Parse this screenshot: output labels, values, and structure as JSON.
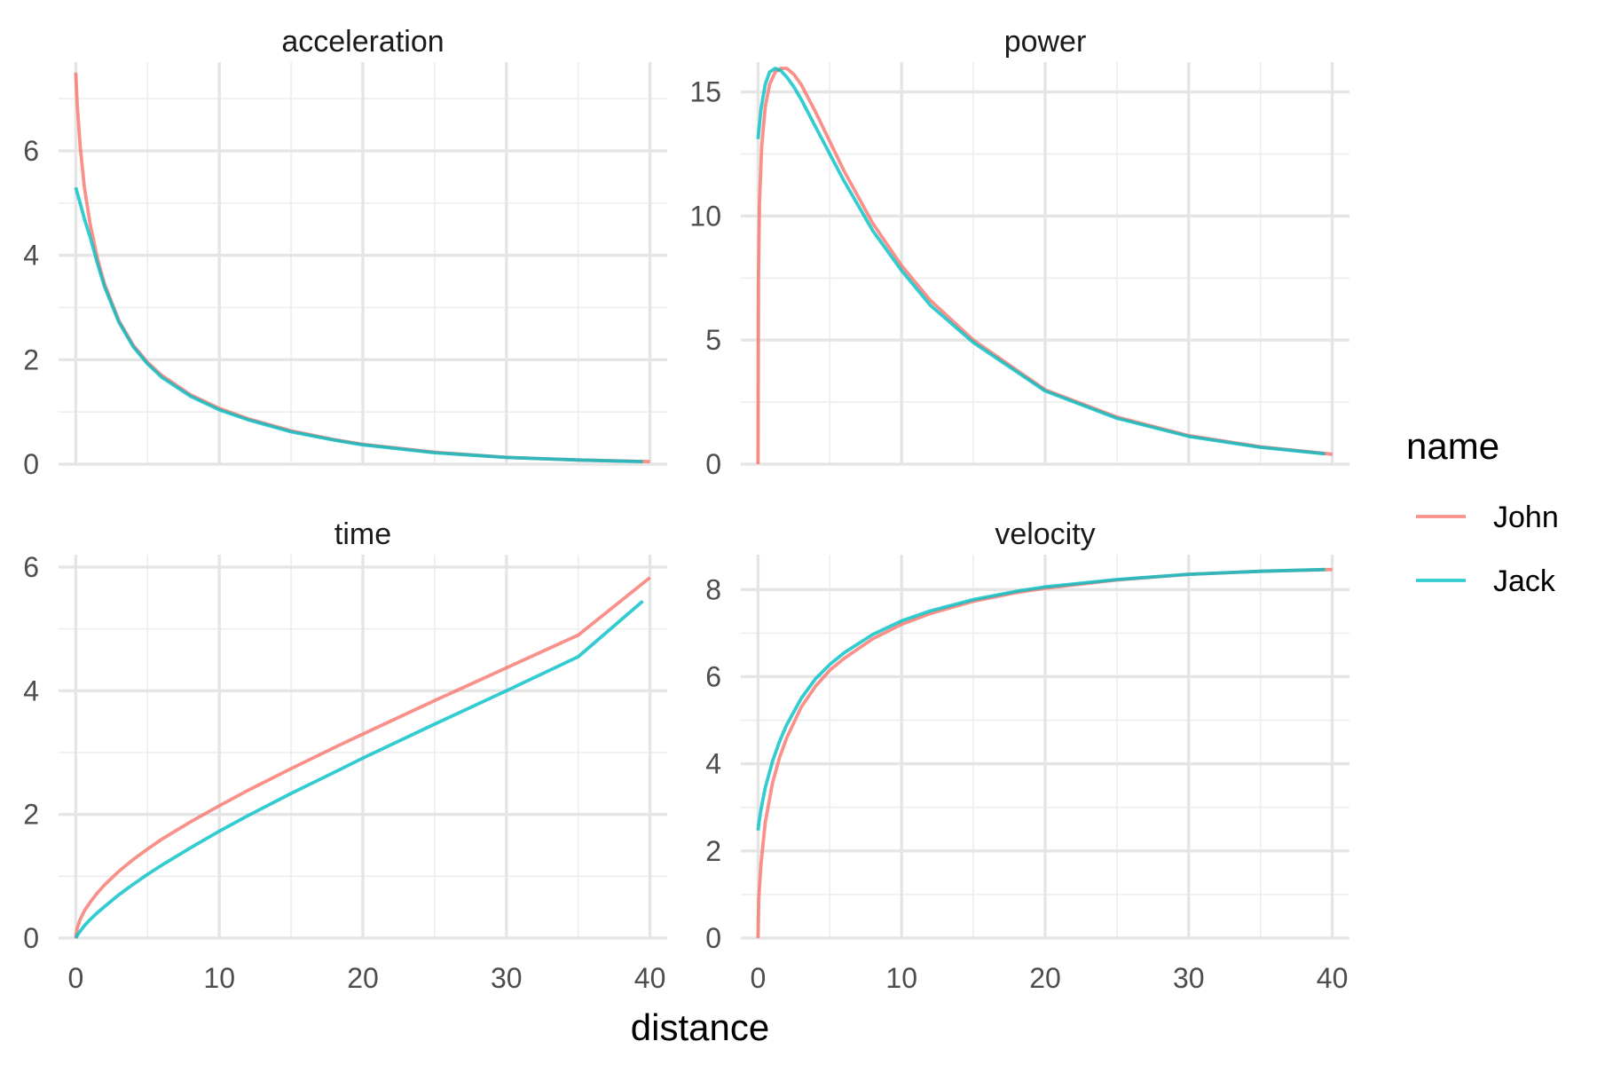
{
  "chart_data": {
    "type": "line",
    "facet_layout": "2x2",
    "xlabel": "distance",
    "legend": {
      "title": "name",
      "position": "right",
      "entries": [
        {
          "label": "John",
          "color": "#F8766D"
        },
        {
          "label": "Jack",
          "color": "#00BFC4"
        }
      ]
    },
    "x_ticks": [
      "0",
      "10",
      "20",
      "30",
      "40"
    ],
    "xlim": [
      0,
      40
    ],
    "grid": true,
    "series_colors": {
      "John": "#F8766D",
      "Jack": "#00BFC4"
    },
    "panels": [
      {
        "title": "acceleration",
        "ylim": [
          0,
          7.7
        ],
        "y_ticks": [
          0,
          2,
          4,
          6
        ],
        "y_tick_labels": [
          "0",
          "2",
          "4",
          "6"
        ],
        "series": [
          {
            "name": "John",
            "x": [
              0,
              0.1,
              0.3,
              0.6,
              1,
              1.5,
              2,
              3,
              4,
              5,
              6,
              8,
              10,
              12,
              15,
              18,
              20,
              25,
              30,
              35,
              40
            ],
            "y": [
              7.5,
              6.9,
              6.1,
              5.3,
              4.6,
              3.95,
              3.45,
              2.75,
              2.28,
              1.95,
              1.7,
              1.33,
              1.07,
              0.87,
              0.64,
              0.47,
              0.38,
              0.23,
              0.13,
              0.08,
              0.05
            ]
          },
          {
            "name": "Jack",
            "x": [
              0,
              0.1,
              0.3,
              0.6,
              1,
              1.5,
              2,
              3,
              4,
              5,
              6,
              8,
              10,
              12,
              15,
              18,
              20,
              25,
              30,
              35,
              39.5
            ],
            "y": [
              5.3,
              5.2,
              5.0,
              4.7,
              4.35,
              3.85,
              3.4,
              2.72,
              2.25,
              1.92,
              1.66,
              1.3,
              1.04,
              0.85,
              0.62,
              0.46,
              0.37,
              0.22,
              0.13,
              0.08,
              0.05
            ]
          }
        ]
      },
      {
        "title": "power",
        "ylim": [
          0,
          16.2
        ],
        "y_ticks": [
          0,
          5,
          10,
          15
        ],
        "y_tick_labels": [
          "0",
          "5",
          "10",
          "15"
        ],
        "series": [
          {
            "name": "John",
            "x": [
              0,
              0.03,
              0.1,
              0.25,
              0.5,
              0.8,
              1.2,
              1.6,
              2,
              2.5,
              3,
              4,
              5,
              6,
              8,
              10,
              12,
              15,
              20,
              25,
              30,
              35,
              40
            ],
            "y": [
              0,
              7.5,
              10.5,
              12.8,
              14.4,
              15.3,
              15.8,
              15.95,
              15.95,
              15.7,
              15.3,
              14.2,
              13.0,
              11.8,
              9.7,
              8.0,
              6.6,
              5.0,
              3.0,
              1.9,
              1.15,
              0.7,
              0.4
            ]
          },
          {
            "name": "Jack",
            "x": [
              0,
              0.2,
              0.5,
              0.8,
              1.2,
              1.6,
              2,
              2.5,
              3,
              4,
              5,
              6,
              8,
              10,
              12,
              15,
              20,
              25,
              30,
              35,
              39.5
            ],
            "y": [
              13.1,
              14.3,
              15.3,
              15.8,
              15.95,
              15.85,
              15.6,
              15.2,
              14.7,
              13.6,
              12.5,
              11.4,
              9.4,
              7.8,
              6.4,
              4.9,
              2.95,
              1.85,
              1.12,
              0.68,
              0.42
            ]
          }
        ]
      },
      {
        "title": "time",
        "ylim": [
          0,
          6.2
        ],
        "y_ticks": [
          0,
          2,
          4,
          6
        ],
        "y_tick_labels": [
          "0",
          "2",
          "4",
          "6"
        ],
        "series": [
          {
            "name": "John",
            "x": [
              0,
              0.1,
              0.3,
              0.6,
              1,
              1.5,
              2,
              3,
              4,
              5,
              6,
              8,
              10,
              12,
              15,
              18,
              20,
              25,
              30,
              35,
              40
            ],
            "y": [
              0,
              0.16,
              0.3,
              0.44,
              0.58,
              0.73,
              0.86,
              1.08,
              1.27,
              1.44,
              1.6,
              1.88,
              2.14,
              2.39,
              2.74,
              3.08,
              3.3,
              3.84,
              4.37,
              4.9,
              5.83
            ]
          },
          {
            "name": "Jack",
            "x": [
              0,
              0.1,
              0.3,
              0.6,
              1,
              1.5,
              2,
              3,
              4,
              5,
              6,
              8,
              10,
              12,
              15,
              18,
              20,
              25,
              30,
              35,
              39.5
            ],
            "y": [
              0,
              0.04,
              0.11,
              0.2,
              0.3,
              0.41,
              0.51,
              0.7,
              0.87,
              1.03,
              1.18,
              1.46,
              1.73,
              1.98,
              2.34,
              2.68,
              2.91,
              3.46,
              4.0,
              4.55,
              5.45
            ]
          }
        ]
      },
      {
        "title": "velocity",
        "ylim": [
          0,
          8.8
        ],
        "y_ticks": [
          0,
          2,
          4,
          6,
          8
        ],
        "y_tick_labels": [
          "0",
          "2",
          "4",
          "6",
          "8"
        ],
        "series": [
          {
            "name": "John",
            "x": [
              0,
              0.05,
              0.2,
              0.5,
              1,
              1.5,
              2,
              3,
              4,
              5,
              6,
              8,
              10,
              12,
              15,
              18,
              20,
              25,
              30,
              35,
              40
            ],
            "y": [
              0,
              0.9,
              1.7,
              2.65,
              3.55,
              4.15,
              4.6,
              5.3,
              5.78,
              6.15,
              6.42,
              6.87,
              7.2,
              7.45,
              7.73,
              7.93,
              8.03,
              8.22,
              8.35,
              8.42,
              8.46
            ]
          },
          {
            "name": "Jack",
            "x": [
              0,
              0.05,
              0.2,
              0.5,
              1,
              1.5,
              2,
              3,
              4,
              5,
              6,
              8,
              10,
              12,
              15,
              18,
              20,
              25,
              30,
              35,
              39.5
            ],
            "y": [
              2.47,
              2.62,
              2.95,
              3.45,
              4.05,
              4.52,
              4.9,
              5.5,
              5.95,
              6.28,
              6.55,
              6.97,
              7.28,
              7.51,
              7.77,
              7.96,
              8.06,
              8.23,
              8.35,
              8.42,
              8.46
            ]
          }
        ]
      }
    ]
  }
}
